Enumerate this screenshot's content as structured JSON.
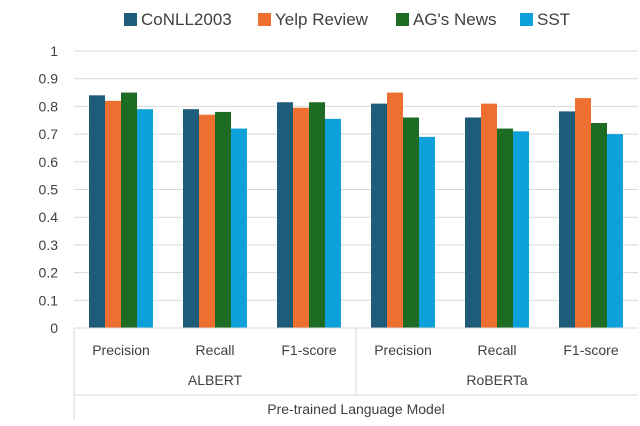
{
  "chart_data": {
    "type": "bar",
    "groups": [
      {
        "label": "ALBERT",
        "categories": [
          "Precision",
          "Recall",
          "F1-score"
        ]
      },
      {
        "label": "RoBERTa",
        "categories": [
          "Precision",
          "Recall",
          "F1-score"
        ]
      }
    ],
    "series": [
      {
        "name": "CoNLL2003",
        "color": "#1f5c7a",
        "values": [
          0.84,
          0.79,
          0.815,
          0.81,
          0.76,
          0.782
        ]
      },
      {
        "name": "Yelp Review",
        "color": "#ed7030",
        "values": [
          0.82,
          0.77,
          0.795,
          0.85,
          0.81,
          0.83
        ]
      },
      {
        "name": "AG's News",
        "color": "#1e6b23",
        "values": [
          0.85,
          0.78,
          0.815,
          0.76,
          0.72,
          0.74
        ]
      },
      {
        "name": "SST",
        "color": "#0ea0d8",
        "values": [
          0.79,
          0.72,
          0.755,
          0.69,
          0.71,
          0.7
        ]
      }
    ],
    "ylim": [
      0,
      1
    ],
    "yticks": [
      "0",
      "0.1",
      "0.2",
      "0.3",
      "0.4",
      "0.5",
      "0.6",
      "0.7",
      "0.8",
      "0.9",
      "1"
    ],
    "xlabel": "Pre-trained Language Model",
    "ylabel": "",
    "grid": true,
    "legend_position": "top"
  }
}
